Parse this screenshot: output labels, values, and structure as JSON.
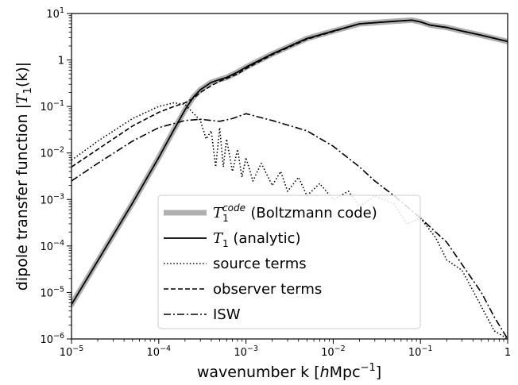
{
  "chart_data": {
    "type": "line",
    "xlabel": {
      "text": "wavenumber k [",
      "h": "h",
      "unit": "Mpc",
      "sup": "−1",
      "close": "]"
    },
    "ylabel": {
      "text": "dipole transfer function |",
      "T": "T",
      "sub": "1",
      "arg": "(k)|"
    },
    "xscale": "log",
    "yscale": "log",
    "xlim": [
      1e-05,
      1
    ],
    "ylim": [
      1e-06,
      10
    ],
    "x_major_ticks": [
      1e-05,
      0.0001,
      0.001,
      0.01,
      0.1,
      1
    ],
    "y_major_ticks": [
      1e-06,
      1e-05,
      0.0001,
      0.001,
      0.01,
      0.1,
      1,
      10
    ],
    "legend_placement": "lower-center",
    "legend": [
      {
        "name_main": "T",
        "name_sub": "1",
        "name_sup": "code",
        "name_rest": " (Boltzmann code)",
        "color": "#b0b0b0",
        "style": "thick"
      },
      {
        "name_main": "T",
        "name_sub": "1",
        "name_rest": " (analytic)",
        "color": "#000000",
        "style": "solid"
      },
      {
        "name_rest": "source terms",
        "color": "#000000",
        "style": "dotted"
      },
      {
        "name_rest": "observer terms",
        "color": "#000000",
        "style": "dashed"
      },
      {
        "name_rest": "ISW",
        "color": "#000000",
        "style": "dashdot"
      }
    ],
    "series": [
      {
        "key": "boltzmann",
        "style": "thick",
        "color": "#b0b0b0",
        "x": [
          1e-05,
          2e-05,
          5e-05,
          0.0001,
          0.00015,
          0.0002,
          0.00025,
          0.0003,
          0.0004,
          0.0005,
          0.0006,
          0.0008,
          0.001,
          0.002,
          0.005,
          0.01,
          0.02,
          0.05,
          0.08,
          0.1,
          0.13,
          0.2,
          0.3,
          0.5,
          1
        ],
        "y": [
          5.5e-06,
          4.8e-05,
          0.00083,
          0.008,
          0.032,
          0.085,
          0.16,
          0.23,
          0.33,
          0.38,
          0.42,
          0.55,
          0.7,
          1.35,
          2.9,
          4.2,
          6.0,
          6.8,
          7.2,
          6.6,
          5.6,
          5.0,
          4.2,
          3.4,
          2.5
        ]
      },
      {
        "key": "analytic",
        "style": "solid",
        "color": "#000000",
        "x": [
          1e-05,
          2e-05,
          5e-05,
          0.0001,
          0.00015,
          0.0002,
          0.00025,
          0.0003,
          0.0004,
          0.0005,
          0.0006,
          0.0008,
          0.001,
          0.002,
          0.005,
          0.01,
          0.02,
          0.05,
          0.08,
          0.1,
          0.13,
          0.2,
          0.3,
          0.5,
          1
        ],
        "y": [
          5.5e-06,
          4.8e-05,
          0.00083,
          0.008,
          0.032,
          0.085,
          0.16,
          0.23,
          0.33,
          0.38,
          0.42,
          0.55,
          0.7,
          1.35,
          2.9,
          4.2,
          6.0,
          6.8,
          7.2,
          6.6,
          5.6,
          5.0,
          4.2,
          3.4,
          2.5
        ]
      },
      {
        "key": "source",
        "style": "dotted",
        "color": "#000000",
        "x": [
          1e-05,
          2e-05,
          5e-05,
          0.0001,
          0.00015,
          0.0002,
          0.0003,
          0.00035,
          0.0004,
          0.00045,
          0.0005,
          0.00055,
          0.0006,
          0.0007,
          0.0008,
          0.0009,
          0.001,
          0.0012,
          0.0015,
          0.002,
          0.0025,
          0.003,
          0.004,
          0.005,
          0.007,
          0.01,
          0.015,
          0.02,
          0.03,
          0.05,
          0.07,
          0.1,
          0.15,
          0.2,
          0.3,
          0.5,
          0.7,
          1
        ],
        "y": [
          0.007,
          0.018,
          0.055,
          0.1,
          0.12,
          0.11,
          0.05,
          0.02,
          0.03,
          0.005,
          0.035,
          0.005,
          0.02,
          0.004,
          0.012,
          0.003,
          0.008,
          0.0025,
          0.006,
          0.002,
          0.004,
          0.0015,
          0.003,
          0.0012,
          0.0022,
          0.001,
          0.0015,
          0.0007,
          0.0012,
          0.0008,
          0.0003,
          0.0004,
          0.00015,
          5e-05,
          3e-05,
          5e-06,
          1.5e-06,
          1e-06
        ]
      },
      {
        "key": "observer",
        "style": "dashed",
        "color": "#000000",
        "x": [
          1e-05,
          2e-05,
          5e-05,
          0.0001,
          0.00015,
          0.0002,
          0.00025,
          0.0003,
          0.0004,
          0.0005,
          0.0006,
          0.0008,
          0.001,
          0.002,
          0.005,
          0.01,
          0.02,
          0.05,
          0.08,
          0.1,
          0.13,
          0.2,
          0.3,
          0.5,
          1
        ],
        "y": [
          0.005,
          0.012,
          0.038,
          0.075,
          0.1,
          0.12,
          0.15,
          0.2,
          0.28,
          0.35,
          0.4,
          0.5,
          0.65,
          1.3,
          2.8,
          4.1,
          6.0,
          6.8,
          7.2,
          6.6,
          5.6,
          5.0,
          4.2,
          3.4,
          2.5
        ]
      },
      {
        "key": "isw",
        "style": "dashdot",
        "color": "#000000",
        "x": [
          1e-05,
          2e-05,
          5e-05,
          0.0001,
          0.0002,
          0.0003,
          0.0005,
          0.0007,
          0.001,
          0.002,
          0.005,
          0.01,
          0.02,
          0.03,
          0.05,
          0.1,
          0.2,
          0.3,
          0.5,
          0.7,
          1
        ],
        "y": [
          0.0025,
          0.006,
          0.018,
          0.035,
          0.05,
          0.053,
          0.048,
          0.055,
          0.07,
          0.05,
          0.03,
          0.014,
          0.005,
          0.0025,
          0.0012,
          0.0004,
          0.00012,
          4e-05,
          1e-05,
          3e-06,
          1e-06
        ]
      }
    ]
  }
}
